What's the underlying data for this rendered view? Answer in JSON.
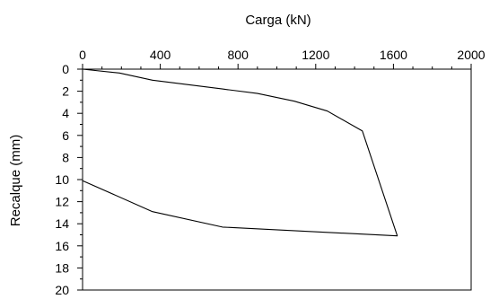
{
  "chart_data": {
    "type": "line",
    "title": "",
    "xlabel": "Carga (kN)",
    "ylabel": "Recalque (mm)",
    "x_axis_position": "top",
    "y_inverted": true,
    "xlim": [
      0,
      2000
    ],
    "ylim": [
      0,
      20
    ],
    "x_ticks": [
      0,
      400,
      800,
      1200,
      1600,
      2000
    ],
    "x_tick_labels": [
      "0",
      "400",
      "800",
      "1200",
      "1600",
      "2000"
    ],
    "y_ticks": [
      0,
      2,
      4,
      6,
      8,
      10,
      12,
      14,
      16,
      18,
      20
    ],
    "y_tick_labels": [
      "0",
      "2",
      "4",
      "6",
      "8",
      "10",
      "12",
      "14",
      "16",
      "18",
      "20"
    ],
    "grid": false,
    "line_color": "#000000",
    "series": [
      {
        "x": [
          0,
          190,
          360,
          720,
          900,
          1090,
          1260,
          1440,
          1620,
          720,
          360,
          0
        ],
        "y": [
          0,
          0.35,
          1.0,
          1.8,
          2.2,
          2.9,
          3.8,
          5.6,
          15.1,
          14.3,
          12.9,
          10.1
        ]
      }
    ]
  }
}
